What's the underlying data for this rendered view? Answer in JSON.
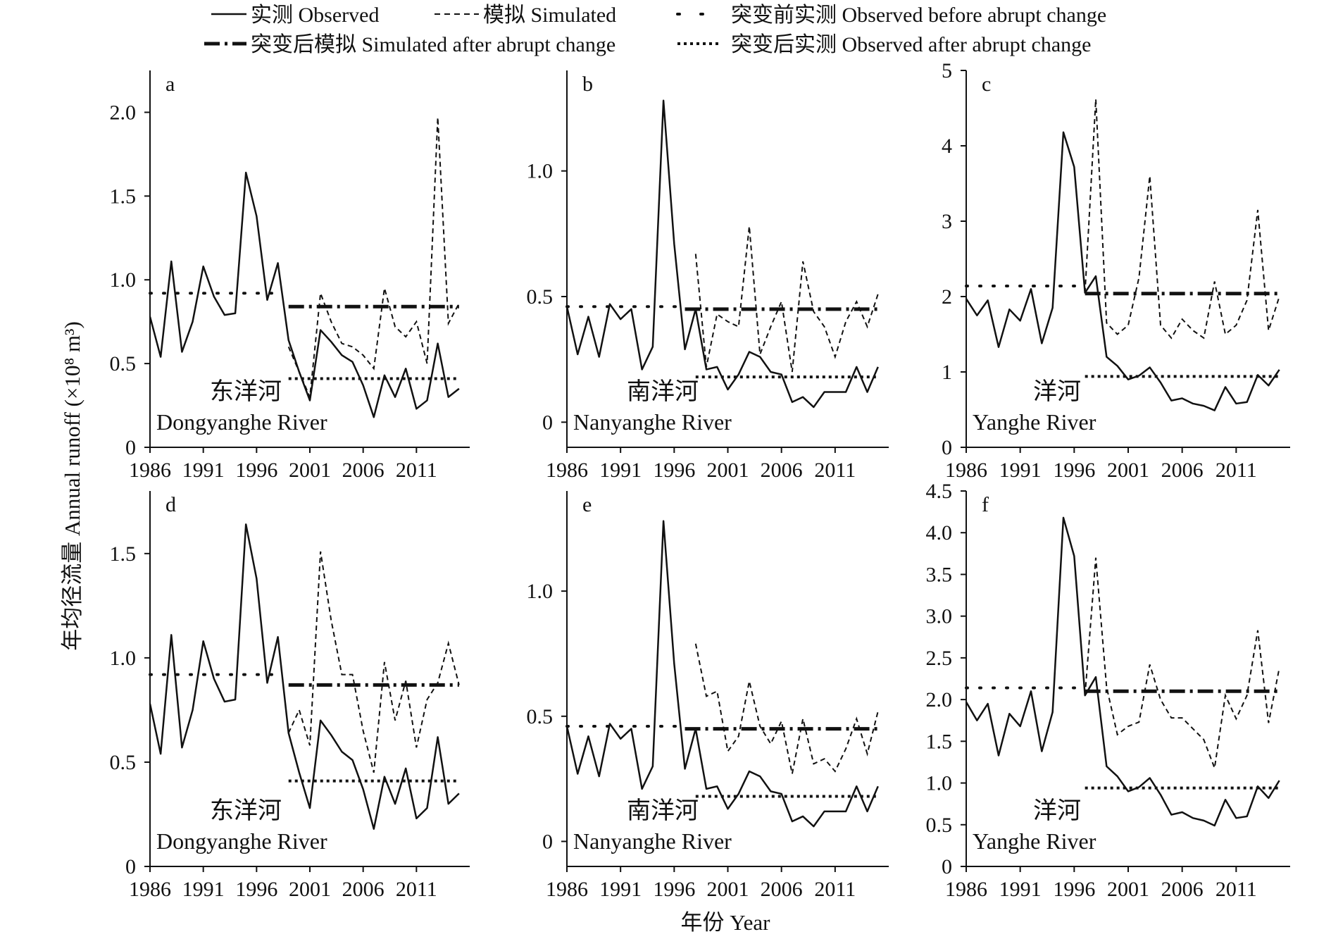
{
  "legend": [
    {
      "key": "observed",
      "label": "实测 Observed"
    },
    {
      "key": "simulated",
      "label": "模拟 Simulated"
    },
    {
      "key": "obs_before",
      "label": "突变前实测 Observed before abrupt change"
    },
    {
      "key": "sim_after",
      "label": "突变后模拟 Simulated after abrupt change"
    },
    {
      "key": "obs_after",
      "label": "突变后实测 Observed after abrupt change"
    }
  ],
  "xlabel": "年份 Year",
  "ylabel": "年均径流量 Annual runoff (×10⁸ m³)",
  "chart_data": [
    {
      "panel": "a",
      "type": "line",
      "river_cn": "东洋河",
      "river_en": "Dongyanghe River",
      "ylim": [
        0,
        2.25
      ],
      "yticks": [
        0,
        0.5,
        1.0,
        1.5,
        2.0
      ],
      "ytick_labels": [
        "0",
        "0.5",
        "1.0",
        "1.5",
        "2.0"
      ],
      "xticks": [
        1986,
        1991,
        1996,
        2001,
        2006,
        2011
      ],
      "xlim": [
        1986,
        2016
      ],
      "observed": {
        "x": [
          1986,
          1987,
          1988,
          1989,
          1990,
          1991,
          1992,
          1993,
          1994,
          1995,
          1996,
          1997,
          1998,
          1999,
          2000,
          2001,
          2002,
          2003,
          2004,
          2005,
          2006,
          2007,
          2008,
          2009,
          2010,
          2011,
          2012,
          2013,
          2014,
          2015
        ],
        "y": [
          0.78,
          0.54,
          1.11,
          0.57,
          0.75,
          1.08,
          0.9,
          0.79,
          0.8,
          1.64,
          1.38,
          0.88,
          1.1,
          0.64,
          0.45,
          0.28,
          0.7,
          0.63,
          0.55,
          0.51,
          0.37,
          0.18,
          0.43,
          0.3,
          0.47,
          0.23,
          0.28,
          0.62,
          0.3,
          0.35
        ]
      },
      "simulated": {
        "x": [
          1999,
          2000,
          2001,
          2002,
          2003,
          2004,
          2005,
          2006,
          2007,
          2008,
          2009,
          2010,
          2011,
          2012,
          2013,
          2014,
          2015
        ],
        "y": [
          0.6,
          0.45,
          0.3,
          0.92,
          0.75,
          0.62,
          0.6,
          0.55,
          0.47,
          0.95,
          0.72,
          0.66,
          0.75,
          0.5,
          1.97,
          0.74,
          0.86
        ]
      },
      "obs_before": {
        "x": [
          1986,
          1998
        ],
        "y": 0.92
      },
      "sim_after": {
        "x": [
          1999,
          2015
        ],
        "y": 0.84
      },
      "obs_after": {
        "x": [
          1999,
          2015
        ],
        "y": 0.41
      }
    },
    {
      "panel": "b",
      "type": "line",
      "river_cn": "南洋河",
      "river_en": "Nanyanghe River",
      "ylim": [
        -0.1,
        1.4
      ],
      "yticks": [
        0,
        0.5,
        1.0
      ],
      "ytick_labels": [
        "0",
        "0.5",
        "1.0"
      ],
      "xticks": [
        1986,
        1991,
        1996,
        2001,
        2006,
        2011
      ],
      "xlim": [
        1986,
        2016
      ],
      "observed": {
        "x": [
          1986,
          1987,
          1988,
          1989,
          1990,
          1991,
          1992,
          1993,
          1994,
          1995,
          1996,
          1997,
          1998,
          1999,
          2000,
          2001,
          2002,
          2003,
          2004,
          2005,
          2006,
          2007,
          2008,
          2009,
          2010,
          2011,
          2012,
          2013,
          2014,
          2015
        ],
        "y": [
          0.46,
          0.27,
          0.42,
          0.26,
          0.47,
          0.41,
          0.45,
          0.21,
          0.3,
          1.28,
          0.71,
          0.29,
          0.45,
          0.21,
          0.22,
          0.13,
          0.19,
          0.28,
          0.26,
          0.2,
          0.19,
          0.08,
          0.1,
          0.06,
          0.12,
          0.12,
          0.12,
          0.22,
          0.12,
          0.22
        ]
      },
      "simulated": {
        "x": [
          1998,
          1999,
          2000,
          2001,
          2002,
          2003,
          2004,
          2005,
          2006,
          2007,
          2008,
          2009,
          2010,
          2011,
          2012,
          2013,
          2014,
          2015
        ],
        "y": [
          0.67,
          0.22,
          0.43,
          0.4,
          0.38,
          0.78,
          0.27,
          0.38,
          0.48,
          0.2,
          0.64,
          0.44,
          0.38,
          0.26,
          0.4,
          0.48,
          0.38,
          0.51
        ]
      },
      "obs_before": {
        "x": [
          1986,
          1997
        ],
        "y": 0.46
      },
      "sim_after": {
        "x": [
          1997,
          2015
        ],
        "y": 0.45
      },
      "obs_after": {
        "x": [
          1998,
          2015
        ],
        "y": 0.18
      }
    },
    {
      "panel": "c",
      "type": "line",
      "river_cn": "洋河",
      "river_en": "Yanghe River",
      "ylim": [
        0,
        5
      ],
      "yticks": [
        0,
        1,
        2,
        3,
        4,
        5
      ],
      "ytick_labels": [
        "0",
        "1",
        "2",
        "3",
        "4",
        "5"
      ],
      "xticks": [
        1986,
        1991,
        1996,
        2001,
        2006,
        2011
      ],
      "xlim": [
        1986,
        2016
      ],
      "observed": {
        "x": [
          1986,
          1987,
          1988,
          1989,
          1990,
          1991,
          1992,
          1993,
          1994,
          1995,
          1996,
          1997,
          1998,
          1999,
          2000,
          2001,
          2002,
          2003,
          2004,
          2005,
          2006,
          2007,
          2008,
          2009,
          2010,
          2011,
          2012,
          2013,
          2014,
          2015
        ],
        "y": [
          1.97,
          1.75,
          1.95,
          1.33,
          1.83,
          1.68,
          2.1,
          1.38,
          1.85,
          4.18,
          3.72,
          2.05,
          2.27,
          1.2,
          1.08,
          0.9,
          0.95,
          1.06,
          0.86,
          0.62,
          0.65,
          0.58,
          0.55,
          0.49,
          0.8,
          0.58,
          0.6,
          0.96,
          0.82,
          1.03
        ]
      },
      "simulated": {
        "x": [
          1997,
          1998,
          1999,
          2000,
          2001,
          2002,
          2003,
          2004,
          2005,
          2006,
          2007,
          2008,
          2009,
          2010,
          2011,
          2012,
          2013,
          2014,
          2015
        ],
        "y": [
          2.05,
          4.62,
          1.65,
          1.5,
          1.62,
          2.25,
          3.6,
          1.62,
          1.45,
          1.7,
          1.55,
          1.45,
          2.2,
          1.5,
          1.62,
          1.95,
          3.15,
          1.55,
          2.0
        ]
      },
      "obs_before": {
        "x": [
          1986,
          1997
        ],
        "y": 2.14
      },
      "sim_after": {
        "x": [
          1997,
          2015
        ],
        "y": 2.04
      },
      "obs_after": {
        "x": [
          1997,
          2015
        ],
        "y": 0.94
      }
    },
    {
      "panel": "d",
      "type": "line",
      "river_cn": "东洋河",
      "river_en": "Dongyanghe River",
      "ylim": [
        0,
        1.8
      ],
      "yticks": [
        0,
        0.5,
        1.0,
        1.5
      ],
      "ytick_labels": [
        "0",
        "0.5",
        "1.0",
        "1.5"
      ],
      "xticks": [
        1986,
        1991,
        1996,
        2001,
        2006,
        2011
      ],
      "xlim": [
        1986,
        2016
      ],
      "observed": {
        "x": [
          1986,
          1987,
          1988,
          1989,
          1990,
          1991,
          1992,
          1993,
          1994,
          1995,
          1996,
          1997,
          1998,
          1999,
          2000,
          2001,
          2002,
          2003,
          2004,
          2005,
          2006,
          2007,
          2008,
          2009,
          2010,
          2011,
          2012,
          2013,
          2014,
          2015
        ],
        "y": [
          0.78,
          0.54,
          1.11,
          0.57,
          0.75,
          1.08,
          0.9,
          0.79,
          0.8,
          1.64,
          1.38,
          0.88,
          1.1,
          0.64,
          0.45,
          0.28,
          0.7,
          0.63,
          0.55,
          0.51,
          0.37,
          0.18,
          0.43,
          0.3,
          0.47,
          0.23,
          0.28,
          0.62,
          0.3,
          0.35
        ]
      },
      "simulated": {
        "x": [
          1999,
          2000,
          2001,
          2002,
          2003,
          2004,
          2005,
          2006,
          2007,
          2008,
          2009,
          2010,
          2011,
          2012,
          2013,
          2014,
          2015
        ],
        "y": [
          0.64,
          0.75,
          0.58,
          1.51,
          1.18,
          0.92,
          0.92,
          0.65,
          0.45,
          0.98,
          0.7,
          0.89,
          0.57,
          0.8,
          0.88,
          1.07,
          0.87
        ]
      },
      "obs_before": {
        "x": [
          1986,
          1998
        ],
        "y": 0.92
      },
      "sim_after": {
        "x": [
          1999,
          2015
        ],
        "y": 0.87
      },
      "obs_after": {
        "x": [
          1999,
          2015
        ],
        "y": 0.41
      }
    },
    {
      "panel": "e",
      "type": "line",
      "river_cn": "南洋河",
      "river_en": "Nanyanghe River",
      "ylim": [
        -0.1,
        1.4
      ],
      "yticks": [
        0,
        0.5,
        1.0
      ],
      "ytick_labels": [
        "0",
        "0.5",
        "1.0"
      ],
      "xticks": [
        1986,
        1991,
        1996,
        2001,
        2006,
        2011
      ],
      "xlim": [
        1986,
        2016
      ],
      "observed": {
        "x": [
          1986,
          1987,
          1988,
          1989,
          1990,
          1991,
          1992,
          1993,
          1994,
          1995,
          1996,
          1997,
          1998,
          1999,
          2000,
          2001,
          2002,
          2003,
          2004,
          2005,
          2006,
          2007,
          2008,
          2009,
          2010,
          2011,
          2012,
          2013,
          2014,
          2015
        ],
        "y": [
          0.46,
          0.27,
          0.42,
          0.26,
          0.47,
          0.41,
          0.45,
          0.21,
          0.3,
          1.28,
          0.71,
          0.29,
          0.45,
          0.21,
          0.22,
          0.13,
          0.19,
          0.28,
          0.26,
          0.2,
          0.19,
          0.08,
          0.1,
          0.06,
          0.12,
          0.12,
          0.12,
          0.22,
          0.12,
          0.22
        ]
      },
      "simulated": {
        "x": [
          1998,
          1999,
          2000,
          2001,
          2002,
          2003,
          2004,
          2005,
          2006,
          2007,
          2008,
          2009,
          2010,
          2011,
          2012,
          2013,
          2014,
          2015
        ],
        "y": [
          0.79,
          0.58,
          0.6,
          0.36,
          0.42,
          0.64,
          0.46,
          0.39,
          0.48,
          0.27,
          0.49,
          0.31,
          0.33,
          0.28,
          0.37,
          0.49,
          0.35,
          0.52
        ]
      },
      "obs_before": {
        "x": [
          1986,
          1997
        ],
        "y": 0.46
      },
      "sim_after": {
        "x": [
          1997,
          2015
        ],
        "y": 0.45
      },
      "obs_after": {
        "x": [
          1998,
          2015
        ],
        "y": 0.18
      }
    },
    {
      "panel": "f",
      "type": "line",
      "river_cn": "洋河",
      "river_en": "Yanghe River",
      "ylim": [
        0,
        4.5
      ],
      "yticks": [
        0,
        0.5,
        1.0,
        1.5,
        2.0,
        2.5,
        3.0,
        3.5,
        4.0,
        4.5
      ],
      "ytick_labels": [
        "0",
        "0.5",
        "1.0",
        "1.5",
        "2.0",
        "2.5",
        "3.0",
        "3.5",
        "4.0",
        "4.5"
      ],
      "xticks": [
        1986,
        1991,
        1996,
        2001,
        2006,
        2011
      ],
      "xlim": [
        1986,
        2016
      ],
      "observed": {
        "x": [
          1986,
          1987,
          1988,
          1989,
          1990,
          1991,
          1992,
          1993,
          1994,
          1995,
          1996,
          1997,
          1998,
          1999,
          2000,
          2001,
          2002,
          2003,
          2004,
          2005,
          2006,
          2007,
          2008,
          2009,
          2010,
          2011,
          2012,
          2013,
          2014,
          2015
        ],
        "y": [
          1.97,
          1.75,
          1.95,
          1.33,
          1.83,
          1.68,
          2.1,
          1.38,
          1.85,
          4.18,
          3.72,
          2.05,
          2.27,
          1.2,
          1.08,
          0.9,
          0.95,
          1.06,
          0.86,
          0.62,
          0.65,
          0.58,
          0.55,
          0.49,
          0.8,
          0.58,
          0.6,
          0.96,
          0.82,
          1.03
        ]
      },
      "simulated": {
        "x": [
          1997,
          1998,
          1999,
          2000,
          2001,
          2002,
          2003,
          2004,
          2005,
          2006,
          2007,
          2008,
          2009,
          2010,
          2011,
          2012,
          2013,
          2014,
          2015
        ],
        "y": [
          2.05,
          3.7,
          2.15,
          1.58,
          1.68,
          1.73,
          2.42,
          2.0,
          1.78,
          1.78,
          1.65,
          1.52,
          1.18,
          2.05,
          1.77,
          2.05,
          2.83,
          1.72,
          2.38
        ]
      },
      "obs_before": {
        "x": [
          1986,
          1997
        ],
        "y": 2.14
      },
      "sim_after": {
        "x": [
          1997,
          2015
        ],
        "y": 2.1
      },
      "obs_after": {
        "x": [
          1997,
          2015
        ],
        "y": 0.94
      }
    }
  ]
}
